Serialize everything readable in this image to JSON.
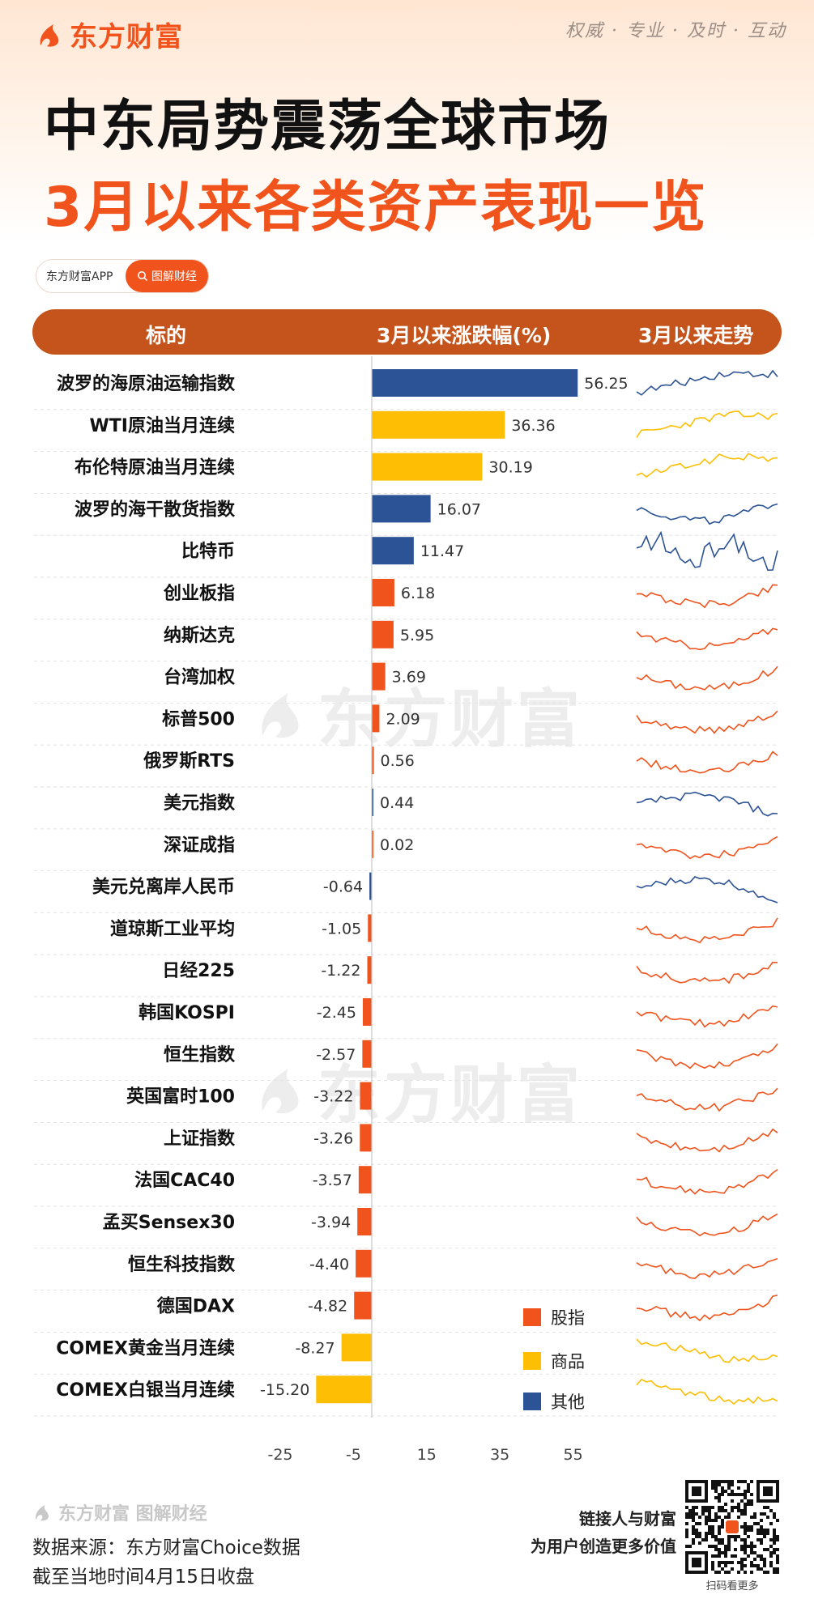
{
  "header": {
    "brand": "东方财富",
    "slogan": "权威 · 专业 · 及时 · 互动",
    "title_line1": "中东局势震荡全球市场",
    "title_line2": "3月以来各类资产表现一览"
  },
  "app_pill": {
    "app_name": "东方财富APP",
    "button_label": "图解财经"
  },
  "table_header": {
    "col_name": "标的",
    "col_change": "3月以来涨跌幅(%)",
    "col_trend": "3月以来走势"
  },
  "legend": [
    {
      "label": "股指",
      "color": "#f0531c"
    },
    {
      "label": "商品",
      "color": "#fdbe03"
    },
    {
      "label": "其他",
      "color": "#2c5395"
    }
  ],
  "colors": {
    "股指": "#f0531c",
    "商品": "#fdbe03",
    "其他": "#2c5395",
    "accent": "#f0531c",
    "header_bar": "#c5541c"
  },
  "watermark": "东方财富",
  "footer": {
    "brand": "东方财富 图解财经",
    "source": "数据来源：东方财富Choice数据",
    "cutoff": "截至当地时间4月15日收盘",
    "tagline1": "链接人与财富",
    "tagline2": "为用户创造更多价值",
    "qr_caption": "扫码看更多"
  },
  "chart_data": {
    "type": "bar",
    "orientation": "horizontal",
    "title": "3月以来各类资产表现一览",
    "xlabel": "3月以来涨跌幅(%)",
    "xlim": [
      -25,
      55
    ],
    "xticks": [
      -25,
      -5,
      15,
      35,
      55
    ],
    "categories": [
      "波罗的海原油运输指数",
      "WTI原油当月连续",
      "布伦特原油当月连续",
      "波罗的海干散货指数",
      "比特币",
      "创业板指",
      "纳斯达克",
      "台湾加权",
      "标普500",
      "俄罗斯RTS",
      "美元指数",
      "深证成指",
      "美元兑离岸人民币",
      "道琼斯工业平均",
      "日经225",
      "韩国KOSPI",
      "恒生指数",
      "英国富时100",
      "上证指数",
      "法国CAC40",
      "孟买Sensex30",
      "恒生科技指数",
      "德国DAX",
      "COMEX黄金当月连续",
      "COMEX白银当月连续"
    ],
    "values": [
      56.25,
      36.36,
      30.19,
      16.07,
      11.47,
      6.18,
      5.95,
      3.69,
      2.09,
      0.56,
      0.44,
      0.02,
      -0.64,
      -1.05,
      -1.22,
      -2.45,
      -2.57,
      -3.22,
      -3.26,
      -3.57,
      -3.94,
      -4.4,
      -4.82,
      -8.27,
      -15.2
    ],
    "value_labels": [
      "56.25",
      "36.36",
      "30.19",
      "16.07",
      "11.47",
      "6.18",
      "5.95",
      "3.69",
      "2.09",
      "0.56",
      "0.44",
      "0.02",
      "-0.64",
      "-1.05",
      "-1.22",
      "-2.45",
      "-2.57",
      "-3.22",
      "-3.26",
      "-3.57",
      "-3.94",
      "-4.40",
      "-4.82",
      "-8.27",
      "-15.20"
    ],
    "groups": [
      "其他",
      "商品",
      "商品",
      "其他",
      "其他",
      "股指",
      "股指",
      "股指",
      "股指",
      "股指",
      "其他",
      "股指",
      "其他",
      "股指",
      "股指",
      "股指",
      "股指",
      "股指",
      "股指",
      "股指",
      "股指",
      "股指",
      "股指",
      "商品",
      "商品"
    ],
    "trend_shapes": [
      "up",
      "up",
      "up",
      "dip-up",
      "zigzag",
      "dip-up",
      "dip-up",
      "dip-up",
      "dip-up",
      "dip-up",
      "hump-down",
      "dip-up",
      "hump-down",
      "dip-up",
      "dip-up",
      "dip-up",
      "dip-up",
      "dip-up",
      "dip-up",
      "dip-up",
      "dip-up",
      "dip-up",
      "dip-up",
      "down-flat",
      "down-flat"
    ]
  }
}
